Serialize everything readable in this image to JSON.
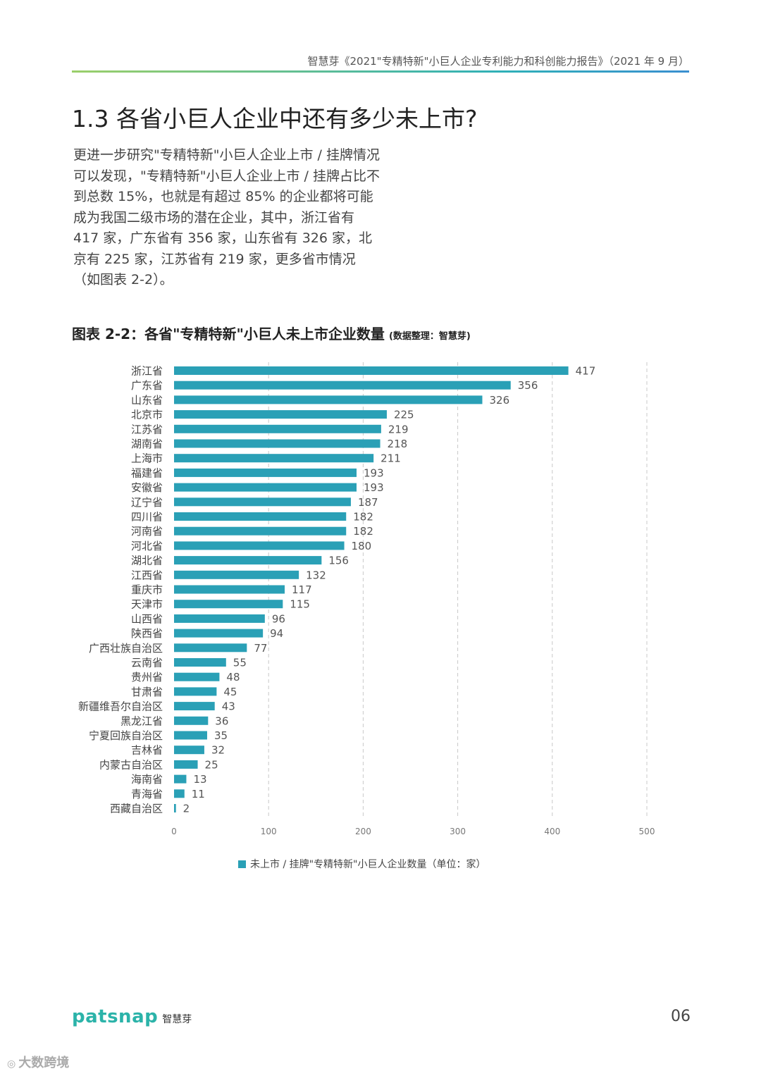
{
  "header": {
    "report_title": "智慧芽《2021\"专精特新\"小巨人企业专利能力和科创能力报告》（2021 年 9 月）"
  },
  "section": {
    "title": "1.3 各省小巨人企业中还有多少未上市?",
    "intro": "更进一步研究\"专精特新\"小巨人企业上市 / 挂牌情况可以发现，\"专精特新\"小巨人企业上市 / 挂牌占比不到总数 15%，也就是有超过 85% 的企业都将可能成为我国二级市场的潜在企业，其中，浙江省有 417 家，广东省有 356 家，山东省有 326 家，北京有 225 家，江苏省有 219 家，更多省市情况（如图表 2-2）。"
  },
  "figure": {
    "caption": "图表 2-2：各省\"专精特新\"小巨人未上市企业数量",
    "source_note": "(数据整理：智慧芽)"
  },
  "chart_data": {
    "type": "bar",
    "orientation": "horizontal",
    "title": "",
    "categories": [
      "浙江省",
      "广东省",
      "山东省",
      "北京市",
      "江苏省",
      "湖南省",
      "上海市",
      "福建省",
      "安徽省",
      "辽宁省",
      "四川省",
      "河南省",
      "河北省",
      "湖北省",
      "江西省",
      "重庆市",
      "天津市",
      "山西省",
      "陕西省",
      "广西壮族自治区",
      "云南省",
      "贵州省",
      "甘肃省",
      "新疆维吾尔自治区",
      "黑龙江省",
      "宁夏回族自治区",
      "吉林省",
      "内蒙古自治区",
      "海南省",
      "青海省",
      "西藏自治区"
    ],
    "series": [
      {
        "name": "未上市 / 挂牌\"专精特新\"小巨人企业数量（单位：家）",
        "values": [
          417,
          356,
          326,
          225,
          219,
          218,
          211,
          193,
          193,
          187,
          182,
          182,
          180,
          156,
          132,
          117,
          115,
          96,
          94,
          77,
          55,
          48,
          45,
          43,
          36,
          35,
          32,
          25,
          13,
          11,
          2
        ]
      }
    ],
    "xlim": [
      0,
      500
    ],
    "xticks": [
      0,
      100,
      200,
      300,
      400,
      500
    ],
    "xlabel": "",
    "ylabel": "",
    "grid": "vertical dashed",
    "legend_position": "bottom",
    "bar_color": "#2aa0b6"
  },
  "footer": {
    "logo_word": "patsnap",
    "logo_cn": "智慧芽",
    "page_number": "06"
  },
  "corner_mark": {
    "text": "大数跨境"
  },
  "colors": {
    "accent_green": "#9bcf6a",
    "accent_teal": "#2fb0b8",
    "bar": "#2aa0b6",
    "logo": "#2bb3a9"
  }
}
